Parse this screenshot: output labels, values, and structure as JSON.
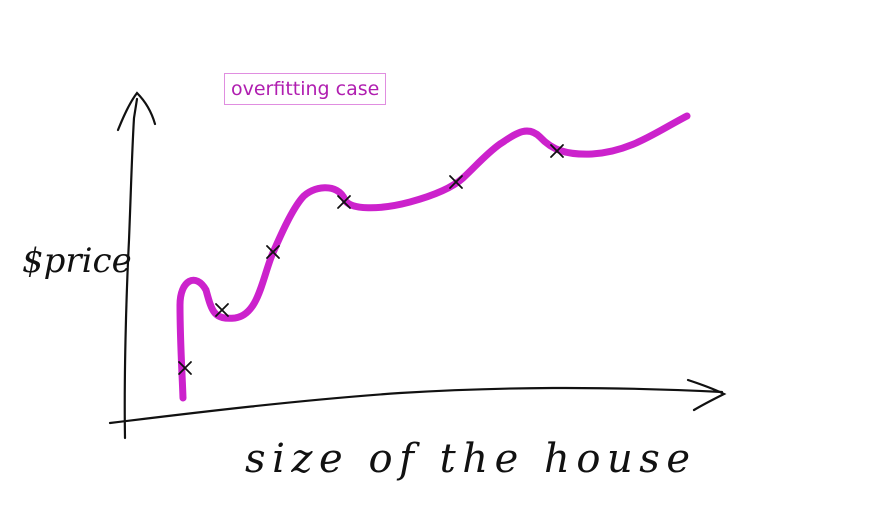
{
  "annotation": {
    "text": "overfitting case"
  },
  "axes": {
    "ylabel": "$price",
    "xlabel": "size of the house"
  },
  "colors": {
    "curve": "#cc22cc",
    "ink": "#111111",
    "annotation_border": "#e08ee0",
    "annotation_text": "#b01eb0"
  },
  "data_points": [
    {
      "label": "x",
      "size": 1,
      "price": 1
    },
    {
      "label": "x",
      "size": 2,
      "price": 2
    },
    {
      "label": "x",
      "size": 3,
      "price": 3
    },
    {
      "label": "x",
      "size": 4,
      "price": 4
    },
    {
      "label": "x",
      "size": 5,
      "price": 5
    },
    {
      "label": "x",
      "size": 6,
      "price": 6
    }
  ]
}
